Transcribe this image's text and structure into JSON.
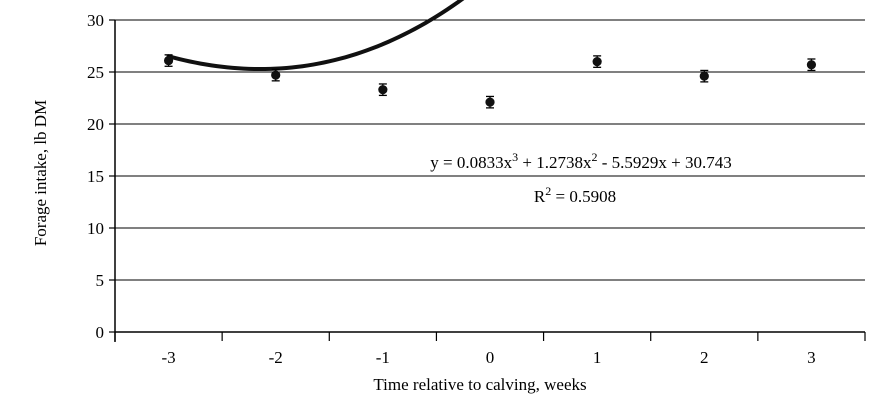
{
  "chart_data": {
    "type": "scatter",
    "xlabel": "Time relative to calving, weeks",
    "ylabel": "Forage intake, lb DM",
    "xlim": [
      -3.5,
      3.5
    ],
    "ylim": [
      0,
      30
    ],
    "x_ticks": [
      "-3",
      "-2",
      "-1",
      "0",
      "1",
      "2",
      "3"
    ],
    "y_ticks": [
      "0",
      "5",
      "10",
      "15",
      "20",
      "25",
      "30"
    ],
    "grid": "horizontal",
    "points": [
      {
        "x": -3,
        "y": 26.1,
        "err": 0.55
      },
      {
        "x": -2,
        "y": 24.7,
        "err": 0.55
      },
      {
        "x": -1,
        "y": 23.3,
        "err": 0.55
      },
      {
        "x": 0,
        "y": 22.1,
        "err": 0.55
      },
      {
        "x": 1,
        "y": 26.0,
        "err": 0.55
      },
      {
        "x": 2,
        "y": 24.6,
        "err": 0.55
      },
      {
        "x": 3,
        "y": 25.7,
        "err": 0.55
      }
    ],
    "trendline": {
      "coefficients": [
        0.0833,
        1.2738,
        -5.5929,
        30.743
      ],
      "equation_parts": [
        "y = 0.0833x",
        "3",
        " + 1.2738x",
        "2",
        " - 5.5929x + 30.743"
      ],
      "r2_parts": [
        "R",
        "2",
        " = 0.5908"
      ]
    }
  }
}
